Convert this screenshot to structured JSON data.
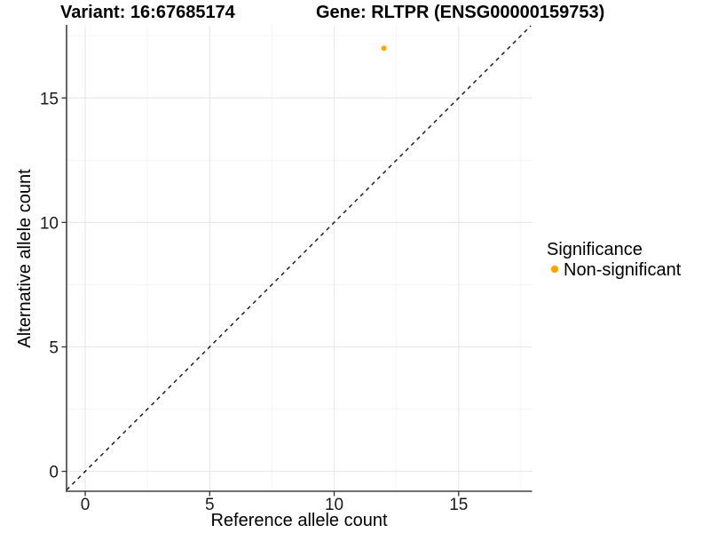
{
  "chart_data": {
    "type": "scatter",
    "title_left": "Variant: 16:67685174",
    "title_right": "Gene: RLTPR (ENSG00000159753)",
    "xlabel": "Reference allele count",
    "ylabel": "Alternative allele count",
    "xlim": [
      -0.75,
      17.95
    ],
    "ylim": [
      -0.8,
      17.9
    ],
    "x_ticks": [
      0,
      5,
      10,
      15
    ],
    "y_ticks": [
      0,
      5,
      10,
      15
    ],
    "x_minor_ticks": [
      2.5,
      7.5,
      12.5,
      17.5
    ],
    "y_minor_ticks": [
      2.5,
      7.5,
      12.5,
      17.5
    ],
    "grid": "major+minor",
    "points": [
      {
        "x": 12,
        "y": 17,
        "series": "Non-significant"
      }
    ],
    "identity_line": {
      "slope": 1,
      "intercept": 0,
      "style": "dashed",
      "color": "#111111"
    },
    "legend": {
      "position": "right",
      "title": "Significance",
      "items": [
        {
          "label": "Non-significant",
          "color": "#FFA500"
        }
      ]
    },
    "colors": {
      "point": "#FFA500",
      "axis_line": "#404040",
      "tick": "#333333",
      "grid_major": "#e8e8e8",
      "grid_minor": "#f3f3f3",
      "background": "#ffffff"
    }
  }
}
